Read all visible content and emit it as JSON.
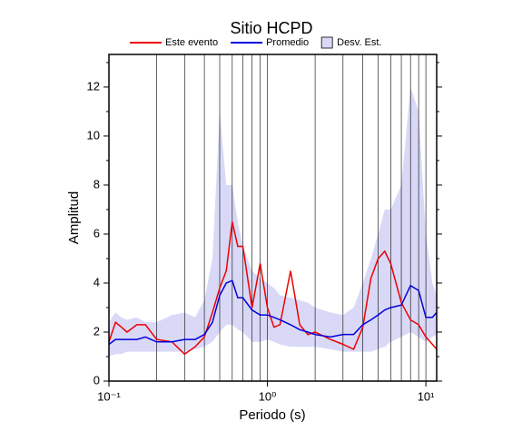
{
  "chart_data": {
    "type": "line",
    "title": "Sitio HCPD",
    "x_label": "Periodo (s)",
    "y_label": "Amplitud",
    "x_scale": "log",
    "xlim": [
      0.1,
      11.7
    ],
    "ylim": [
      0,
      13.33
    ],
    "xticks": [
      {
        "value": 0.1,
        "label": "10⁻¹"
      },
      {
        "value": 1,
        "label": "10⁰"
      },
      {
        "value": 10,
        "label": "10¹"
      }
    ],
    "xgrid": [
      0.2,
      0.3,
      0.4,
      0.5,
      0.6,
      0.7,
      0.8,
      0.9,
      1,
      2,
      3,
      4,
      5,
      6,
      7,
      8,
      9,
      10
    ],
    "yticks": [
      0,
      2,
      4,
      6,
      8,
      10,
      12
    ],
    "yminor_ticks": [
      1,
      3,
      5,
      7,
      9,
      11,
      13
    ],
    "x": [
      0.1,
      0.11,
      0.12,
      0.13,
      0.15,
      0.17,
      0.2,
      0.25,
      0.3,
      0.35,
      0.4,
      0.45,
      0.5,
      0.55,
      0.6,
      0.65,
      0.7,
      0.8,
      0.9,
      1.0,
      1.1,
      1.2,
      1.4,
      1.6,
      1.8,
      2,
      2.5,
      3,
      3.5,
      4,
      4.5,
      5,
      5.5,
      6,
      7,
      8,
      9,
      10,
      11,
      11.7
    ],
    "band": {
      "name": "Desv. Est.",
      "color": "#d9d9f7",
      "lower": [
        1.0,
        1.1,
        1.1,
        1.2,
        1.2,
        1.2,
        1.2,
        1.2,
        1.2,
        1.3,
        1.4,
        1.6,
        2.0,
        2.3,
        2.3,
        2.1,
        2.0,
        1.6,
        1.6,
        1.7,
        1.6,
        1.5,
        1.4,
        1.4,
        1.4,
        1.4,
        1.3,
        1.2,
        1.2,
        1.2,
        1.2,
        1.3,
        1.4,
        1.6,
        1.8,
        2.0,
        1.8,
        1.6,
        1.8,
        1.9
      ],
      "upper": [
        2.4,
        2.8,
        2.6,
        2.5,
        2.6,
        2.4,
        2.4,
        2.7,
        2.8,
        2.6,
        3.3,
        5.0,
        11.0,
        8.0,
        8.0,
        6.5,
        5.5,
        4.5,
        4.2,
        4.0,
        3.8,
        3.5,
        3.4,
        3.3,
        3.2,
        3.0,
        2.8,
        2.7,
        3.0,
        4.0,
        5.0,
        6.0,
        7.0,
        7.0,
        8.0,
        12.0,
        11.0,
        6.0,
        4.0,
        3.5
      ]
    },
    "series": [
      {
        "name": "Este evento",
        "color": "#ee0000",
        "values": [
          1.6,
          2.4,
          2.2,
          2.0,
          2.3,
          2.3,
          1.7,
          1.6,
          1.1,
          1.4,
          1.8,
          2.8,
          3.8,
          4.5,
          6.5,
          5.5,
          5.5,
          3.0,
          4.8,
          3.0,
          2.2,
          2.3,
          4.5,
          2.3,
          1.9,
          2.0,
          1.7,
          1.5,
          1.3,
          2.2,
          4.2,
          5.0,
          5.3,
          4.8,
          3.2,
          2.5,
          2.3,
          1.8,
          1.5,
          1.3
        ]
      },
      {
        "name": "Promedio",
        "color": "#0000dd",
        "values": [
          1.5,
          1.7,
          1.7,
          1.7,
          1.7,
          1.8,
          1.6,
          1.6,
          1.7,
          1.7,
          1.9,
          2.4,
          3.5,
          4.0,
          4.1,
          3.4,
          3.4,
          2.9,
          2.7,
          2.7,
          2.6,
          2.5,
          2.3,
          2.1,
          2.0,
          1.9,
          1.8,
          1.9,
          1.9,
          2.3,
          2.5,
          2.7,
          2.9,
          3.0,
          3.1,
          3.9,
          3.7,
          2.6,
          2.6,
          2.8
        ]
      }
    ]
  }
}
